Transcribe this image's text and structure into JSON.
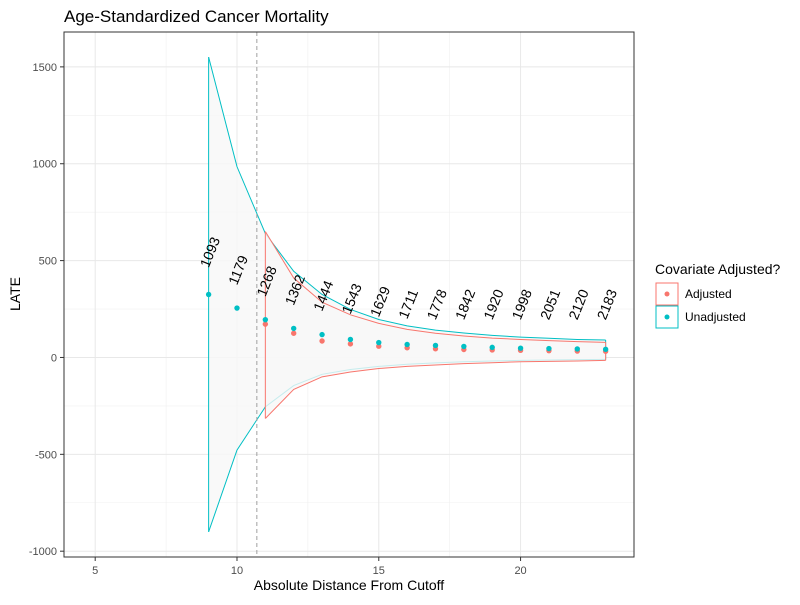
{
  "chart_data": {
    "type": "scatter",
    "title": "Age-Standardized Cancer Mortality",
    "xlabel": "Absolute Distance From Cutoff",
    "ylabel": "LATE",
    "xlim": [
      3.9,
      24.0
    ],
    "ylim": [
      -1030,
      1680
    ],
    "x_ticks": [
      5,
      10,
      15,
      20
    ],
    "y_ticks": [
      -1000,
      -500,
      0,
      500,
      1000,
      1500
    ],
    "grid": true,
    "cutoff_line_x": 10.7,
    "legend": {
      "title": "Covariate Adjusted?",
      "position": "right",
      "entries": [
        "Adjusted",
        "Unadjusted"
      ]
    },
    "colors": {
      "Adjusted": "#F8766D",
      "Unadjusted": "#00BFC4",
      "ci_fill": "#f7f7f7",
      "cutoff": "#a0a0a0"
    },
    "series": [
      {
        "name": "Unadjusted",
        "x": [
          9,
          10,
          11,
          12,
          13,
          14,
          15,
          16,
          17,
          18,
          19,
          20,
          21,
          22,
          23
        ],
        "values": [
          325,
          255,
          195,
          150,
          118,
          93,
          77,
          67,
          62,
          57,
          52,
          48,
          46,
          44,
          42
        ],
        "ci_upper": [
          1550,
          985,
          640,
          445,
          325,
          248,
          196,
          163,
          141,
          126,
          114,
          105,
          99,
          93,
          90
        ],
        "ci_lower": [
          -900,
          -478,
          -255,
          -145,
          -87,
          -62,
          -46,
          -35,
          -28,
          -22,
          -18,
          -15,
          -13,
          -11,
          -10
        ]
      },
      {
        "name": "Adjusted",
        "x": [
          11,
          12,
          13,
          14,
          15,
          16,
          17,
          18,
          19,
          20,
          21,
          22,
          23
        ],
        "values": [
          172,
          125,
          85,
          70,
          58,
          50,
          45,
          41,
          39,
          37,
          35,
          33,
          32
        ],
        "ci_upper": [
          650,
          410,
          285,
          220,
          176,
          145,
          125,
          111,
          100,
          93,
          87,
          82,
          78
        ],
        "ci_lower": [
          -315,
          -165,
          -100,
          -75,
          -57,
          -46,
          -39,
          -32,
          -27,
          -22,
          -20,
          -18,
          -15
        ]
      }
    ],
    "annotations": {
      "x": [
        9,
        10,
        11,
        12,
        13,
        14,
        15,
        16,
        17,
        18,
        19,
        20,
        21,
        22,
        23
      ],
      "labels": [
        "1093",
        "1179",
        "1268",
        "1362",
        "1444",
        "1543",
        "1629",
        "1711",
        "1778",
        "1842",
        "1920",
        "1998",
        "2051",
        "2120",
        "2183"
      ],
      "y": [
        460,
        370,
        310,
        265,
        235,
        220,
        205,
        195,
        190,
        190,
        190,
        190,
        190,
        190,
        190
      ]
    }
  }
}
